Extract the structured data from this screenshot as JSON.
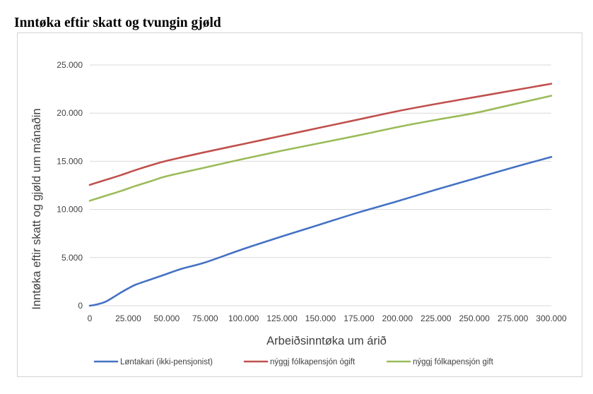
{
  "page": {
    "title": "Inntøka eftir skatt og tvungin gjøld"
  },
  "chart_data": {
    "type": "line",
    "title": "",
    "xlabel": "Arbeiðsinntøka um árið",
    "ylabel": "Inntøka eftir skatt og gjøld um mánaðin",
    "xlim": [
      0,
      300000
    ],
    "ylim": [
      0,
      25000
    ],
    "x_ticks": [
      "0",
      "25.000",
      "50.000",
      "75.000",
      "100.000",
      "125.000",
      "150.000",
      "175.000",
      "200.000",
      "225.000",
      "250.000",
      "275.000",
      "300.000"
    ],
    "y_ticks": [
      "0",
      "5.000",
      "10.000",
      "15.000",
      "20.000",
      "25.000"
    ],
    "x_tick_values": [
      0,
      25000,
      50000,
      75000,
      100000,
      125000,
      150000,
      175000,
      200000,
      225000,
      250000,
      275000,
      300000
    ],
    "y_tick_values": [
      0,
      5000,
      10000,
      15000,
      20000,
      25000
    ],
    "grid": "horizontal",
    "legend_position": "bottom",
    "series": [
      {
        "name": "Løntakari (ikki-pensjonist)",
        "color": "#4472c4",
        "x": [
          0,
          5000,
          10000,
          15000,
          20000,
          25000,
          30000,
          40000,
          50000,
          60000,
          75000,
          100000,
          125000,
          150000,
          175000,
          200000,
          225000,
          250000,
          275000,
          300000
        ],
        "values": [
          0,
          150,
          400,
          850,
          1350,
          1800,
          2200,
          2750,
          3300,
          3850,
          4500,
          5900,
          7200,
          8450,
          9700,
          10850,
          12050,
          13200,
          14350,
          15450
        ]
      },
      {
        "name": "nýggj fólkapensjón ógift",
        "color": "#c0504d",
        "x": [
          0,
          10000,
          20000,
          30000,
          40000,
          50000,
          75000,
          100000,
          125000,
          150000,
          175000,
          200000,
          225000,
          250000,
          275000,
          300000
        ],
        "values": [
          12550,
          13050,
          13550,
          14100,
          14600,
          15050,
          15950,
          16800,
          17650,
          18500,
          19350,
          20200,
          20950,
          21650,
          22350,
          23050
        ]
      },
      {
        "name": "nýggj fólkapensjón gift",
        "color": "#9bbb59",
        "x": [
          0,
          10000,
          20000,
          30000,
          40000,
          50000,
          75000,
          100000,
          125000,
          150000,
          175000,
          200000,
          225000,
          250000,
          275000,
          300000
        ],
        "values": [
          10900,
          11400,
          11900,
          12450,
          12950,
          13450,
          14350,
          15250,
          16100,
          16900,
          17700,
          18550,
          19300,
          20000,
          20900,
          21800
        ]
      }
    ]
  }
}
